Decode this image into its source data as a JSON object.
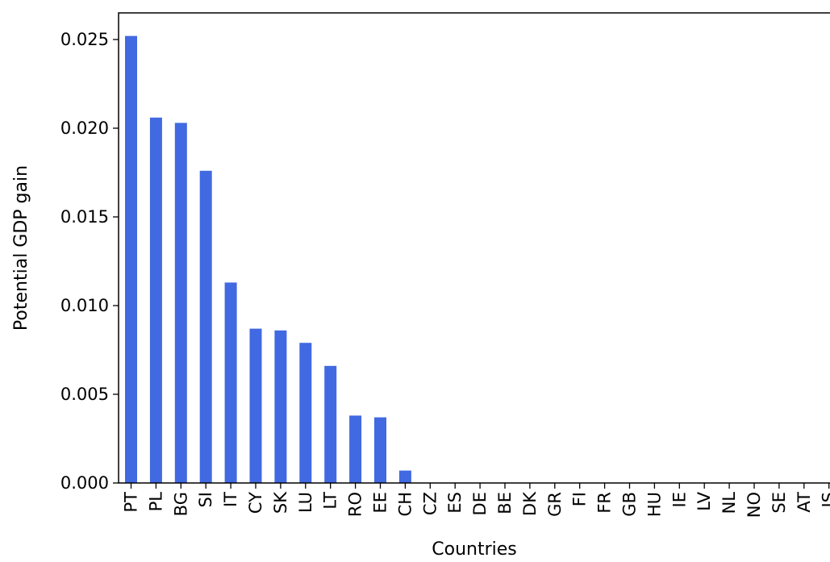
{
  "chart_data": {
    "type": "bar",
    "title": "",
    "xlabel": "Countries",
    "ylabel": "Potential GDP gain",
    "categories": [
      "PT",
      "PL",
      "BG",
      "SI",
      "IT",
      "CY",
      "SK",
      "LU",
      "LT",
      "RO",
      "EE",
      "CH",
      "CZ",
      "ES",
      "DE",
      "BE",
      "DK",
      "GR",
      "FI",
      "FR",
      "GB",
      "HU",
      "IE",
      "LV",
      "NL",
      "NO",
      "SE",
      "AT",
      "IS"
    ],
    "values": [
      0.0252,
      0.0206,
      0.0203,
      0.0176,
      0.0113,
      0.0087,
      0.0086,
      0.0079,
      0.0066,
      0.0038,
      0.0037,
      0.0007,
      0,
      0,
      0,
      0,
      0,
      0,
      0,
      0,
      0,
      0,
      0,
      0,
      0,
      0,
      0,
      0,
      0
    ],
    "ylim": [
      0,
      0.0265
    ],
    "yticks": [
      0.0,
      0.005,
      0.01,
      0.015,
      0.02,
      0.025
    ],
    "ytick_labels": [
      "0.000",
      "0.005",
      "0.010",
      "0.015",
      "0.020",
      "0.025"
    ],
    "grid": false,
    "legend": "none",
    "bar_color": "#4169E1"
  }
}
